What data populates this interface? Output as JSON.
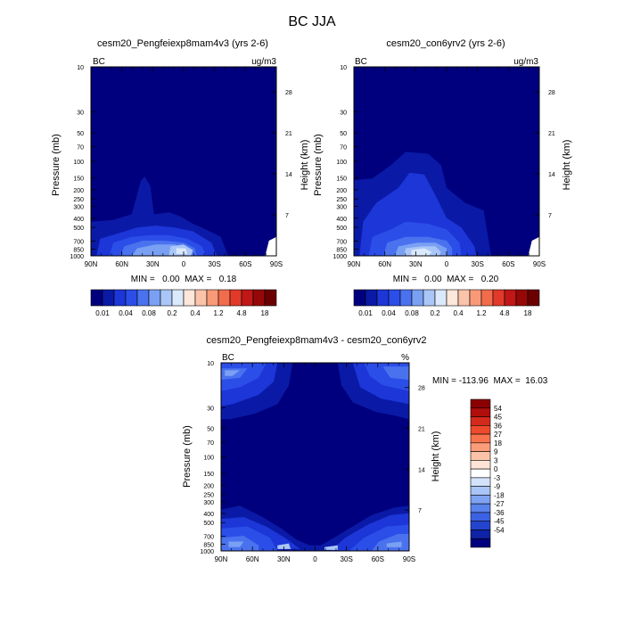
{
  "page_title": "BC JJA",
  "colors": {
    "deep_navy": "#00007e",
    "navy": "#0a1aa6",
    "royal_blue": "#1c36d8",
    "blue": "#2c4ee8",
    "medium_blue": "#4a72ef",
    "cornflower": "#7aa0f3",
    "light_blue": "#aac6f8",
    "pale_blue": "#dbe9fc",
    "white": "#ffffff"
  },
  "chart_data": [
    {
      "type": "heatmap",
      "title": "cesm20_Pengfeiexp8mam4v3 (yrs 2-6)",
      "corner_left": "BC",
      "corner_right": "ug/m3",
      "ylabel": "Pressure (mb)",
      "ylabel_right": "Height (km)",
      "xlabel": "",
      "x_ticks": [
        "90N",
        "60N",
        "30N",
        "0",
        "30S",
        "60S",
        "90S"
      ],
      "y_ticks": [
        "10",
        "30",
        "50",
        "70",
        "100",
        "150",
        "200",
        "250",
        "300",
        "400",
        "500",
        "700",
        "850",
        "1000"
      ],
      "y_ticks_right": [
        "28",
        "21",
        "14",
        "7"
      ],
      "xlim": [
        90,
        -90
      ],
      "ylim": [
        1000,
        10
      ],
      "y_scale": "log",
      "stats": "MIN =   0.00  MAX =   0.18",
      "min": 0.0,
      "max": 0.18,
      "colorbar": {
        "orientation": "horizontal",
        "labels": [
          "0.01",
          "0.04",
          "0.08",
          "0.2",
          "0.4",
          "1.2",
          "4.8",
          "18"
        ],
        "colors": [
          "#00007e",
          "#0a1aa6",
          "#1c36d8",
          "#2c4ee8",
          "#4a72ef",
          "#7aa0f3",
          "#aac6f8",
          "#dbe9fc",
          "#fde6da",
          "#fbc3a9",
          "#f89a78",
          "#f26c4c",
          "#e23a2a",
          "#c01717",
          "#960808",
          "#6b0000"
        ]
      }
    },
    {
      "type": "heatmap",
      "title": "cesm20_con6yrv2 (yrs 2-6)",
      "corner_left": "BC",
      "corner_right": "ug/m3",
      "ylabel": "Pressure (mb)",
      "ylabel_right": "Height (km)",
      "xlabel": "",
      "x_ticks": [
        "90N",
        "60N",
        "30N",
        "0",
        "30S",
        "60S",
        "90S"
      ],
      "y_ticks": [
        "10",
        "30",
        "50",
        "70",
        "100",
        "150",
        "200",
        "250",
        "300",
        "400",
        "500",
        "700",
        "850",
        "1000"
      ],
      "y_ticks_right": [
        "28",
        "21",
        "14",
        "7"
      ],
      "xlim": [
        90,
        -90
      ],
      "ylim": [
        1000,
        10
      ],
      "y_scale": "log",
      "stats": "MIN =   0.00  MAX =   0.20",
      "min": 0.0,
      "max": 0.2,
      "colorbar": {
        "orientation": "horizontal",
        "labels": [
          "0.01",
          "0.04",
          "0.08",
          "0.2",
          "0.4",
          "1.2",
          "4.8",
          "18"
        ],
        "colors": [
          "#00007e",
          "#0a1aa6",
          "#1c36d8",
          "#2c4ee8",
          "#4a72ef",
          "#7aa0f3",
          "#aac6f8",
          "#dbe9fc",
          "#fde6da",
          "#fbc3a9",
          "#f89a78",
          "#f26c4c",
          "#e23a2a",
          "#c01717",
          "#960808",
          "#6b0000"
        ]
      }
    },
    {
      "type": "heatmap",
      "title": "cesm20_Pengfeiexp8mam4v3 - cesm20_con6yrv2",
      "corner_left": "BC",
      "corner_right": "%",
      "ylabel": "Pressure (mb)",
      "ylabel_right": "Height (km)",
      "xlabel": "",
      "x_ticks": [
        "90N",
        "60N",
        "30N",
        "0",
        "30S",
        "60S",
        "90S"
      ],
      "y_ticks": [
        "10",
        "30",
        "50",
        "70",
        "100",
        "150",
        "200",
        "250",
        "300",
        "400",
        "500",
        "700",
        "850",
        "1000"
      ],
      "y_ticks_right": [
        "28",
        "21",
        "14",
        "7"
      ],
      "xlim": [
        90,
        -90
      ],
      "ylim": [
        1000,
        10
      ],
      "y_scale": "log",
      "stats": "MIN = -113.96  MAX =  16.03",
      "min": -113.96,
      "max": 16.03,
      "colorbar": {
        "orientation": "vertical",
        "labels": [
          "54",
          "45",
          "36",
          "27",
          "18",
          "9",
          "3",
          "0",
          "-3",
          "-9",
          "-18",
          "-27",
          "-36",
          "-45",
          "-54"
        ],
        "colors": [
          "#8b0000",
          "#b00d0d",
          "#d32a1c",
          "#ee4a2c",
          "#f9744e",
          "#fb9c7a",
          "#fdc3a8",
          "#fee4d6",
          "#ffffff",
          "#d2e2fb",
          "#a9c4f6",
          "#7fa2f1",
          "#5a82ec",
          "#3c62e3",
          "#2444cf",
          "#0f23a6",
          "#00007e"
        ]
      }
    }
  ]
}
